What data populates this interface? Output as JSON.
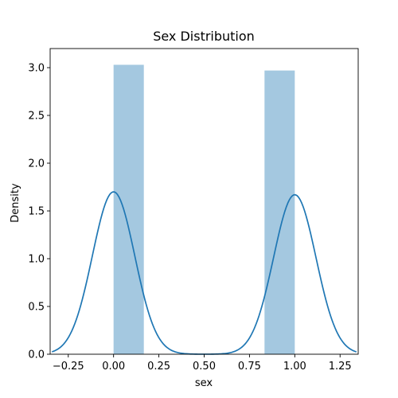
{
  "chart_data": {
    "type": "bar",
    "title": "Sex Distribution",
    "xlabel": "sex",
    "ylabel": "Density",
    "xlim": [
      -0.35,
      1.35
    ],
    "ylim": [
      0,
      3.2
    ],
    "xticks": [
      -0.25,
      0.0,
      0.25,
      0.5,
      0.75,
      1.0,
      1.25
    ],
    "xtick_labels": [
      "−0.25",
      "0.00",
      "0.25",
      "0.50",
      "0.75",
      "1.00",
      "1.25"
    ],
    "yticks": [
      0.0,
      0.5,
      1.0,
      1.5,
      2.0,
      2.5,
      3.0
    ],
    "ytick_labels": [
      "0.0",
      "0.5",
      "1.0",
      "1.5",
      "2.0",
      "2.5",
      "3.0"
    ],
    "histogram": {
      "bins": [
        [
          0.0,
          0.167
        ],
        [
          0.833,
          1.0
        ]
      ],
      "density": [
        3.03,
        2.97
      ],
      "color": "#a4c8e0"
    },
    "kde": {
      "color": "#1f77b4",
      "centers": [
        0.0,
        1.0
      ],
      "peaks": [
        1.7,
        1.67
      ],
      "x_range": [
        -0.34,
        1.34
      ]
    },
    "grid": false,
    "legend": "none"
  }
}
